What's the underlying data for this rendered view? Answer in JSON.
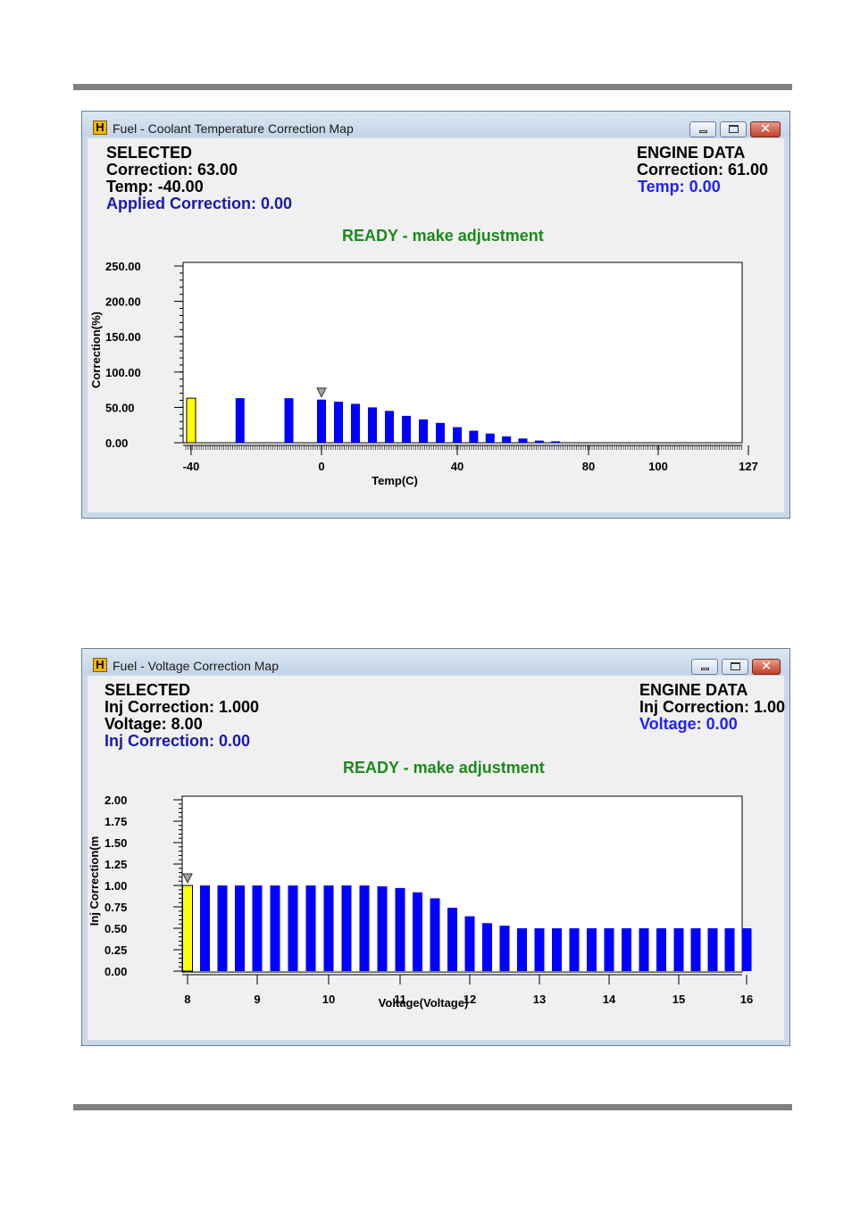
{
  "windows": [
    {
      "title": "Fuel - Coolant Temperature Correction Map",
      "app_icon_letter": "H",
      "selected": {
        "heading": "SELECTED",
        "correction": "Correction: 63.00",
        "temp": "Temp: -40.00",
        "applied": "Applied Correction: 0.00"
      },
      "engine": {
        "heading": "ENGINE DATA",
        "correction": "Correction: 61.00",
        "temp": "Temp: 0.00"
      },
      "status": "READY - make adjustment"
    },
    {
      "title": "Fuel - Voltage Correction Map",
      "app_icon_letter": "H",
      "selected": {
        "heading": "SELECTED",
        "correction": "Inj Correction: 1.000",
        "voltage": "Voltage: 8.00",
        "applied": "Inj Correction: 0.00"
      },
      "engine": {
        "heading": "ENGINE DATA",
        "correction": "Inj Correction: 1.00",
        "voltage": "Voltage: 0.00"
      },
      "status": "READY - make adjustment"
    }
  ],
  "colors": {
    "bar": "#0000ff",
    "selected_bar": "#ffff00",
    "status": "#1a8a1a",
    "axis": "#000000"
  },
  "chart_data": [
    {
      "type": "bar",
      "ylabel": "Correction(%)",
      "xlabel": "Temp(C)",
      "ylim": [
        0,
        250
      ],
      "yticks": [
        "250.00",
        "200.00",
        "150.00",
        "100.00",
        "50.00",
        "0.00"
      ],
      "xticks": [
        "-40",
        "0",
        "40",
        "80",
        "100",
        "127"
      ],
      "x": [
        -40,
        -25,
        -10,
        0,
        5,
        10,
        15,
        20,
        25,
        30,
        35,
        40,
        45,
        50,
        55,
        60,
        65,
        70,
        75,
        80,
        85,
        90,
        95,
        100,
        105,
        110,
        115,
        120,
        125
      ],
      "values": [
        63,
        63,
        63,
        61,
        58,
        55,
        50,
        45,
        38,
        33,
        28,
        22,
        17,
        13,
        9,
        6,
        3,
        2,
        0,
        0,
        0,
        0,
        0,
        0,
        0,
        0,
        0,
        0,
        0
      ],
      "selected_index": 0,
      "engine_index": 3,
      "grid": false
    },
    {
      "type": "bar",
      "ylabel": "Inj Correction(m",
      "xlabel": "Voltage(Voltage)",
      "ylim": [
        0,
        2
      ],
      "yticks": [
        "2.00",
        "1.75",
        "1.50",
        "1.25",
        "1.00",
        "0.75",
        "0.50",
        "0.25",
        "0.00"
      ],
      "xticks": [
        "8",
        "9",
        "10",
        "11",
        "12",
        "13",
        "14",
        "15",
        "16"
      ],
      "x": [
        8.0,
        8.25,
        8.5,
        8.75,
        9.0,
        9.25,
        9.5,
        9.75,
        10.0,
        10.25,
        10.5,
        10.75,
        11.0,
        11.25,
        11.5,
        11.75,
        12.0,
        12.25,
        12.5,
        12.75,
        13.0,
        13.25,
        13.5,
        13.75,
        14.0,
        14.25,
        14.5,
        14.75,
        15.0,
        15.25,
        15.5,
        15.75,
        16.0
      ],
      "values": [
        1.0,
        1.0,
        1.0,
        1.0,
        1.0,
        1.0,
        1.0,
        1.0,
        1.0,
        1.0,
        1.0,
        0.99,
        0.97,
        0.92,
        0.85,
        0.74,
        0.64,
        0.56,
        0.53,
        0.5,
        0.5,
        0.5,
        0.5,
        0.5,
        0.5,
        0.5,
        0.5,
        0.5,
        0.5,
        0.5,
        0.5,
        0.5,
        0.5
      ],
      "selected_index": 0,
      "engine_index": 0,
      "grid": false
    }
  ]
}
